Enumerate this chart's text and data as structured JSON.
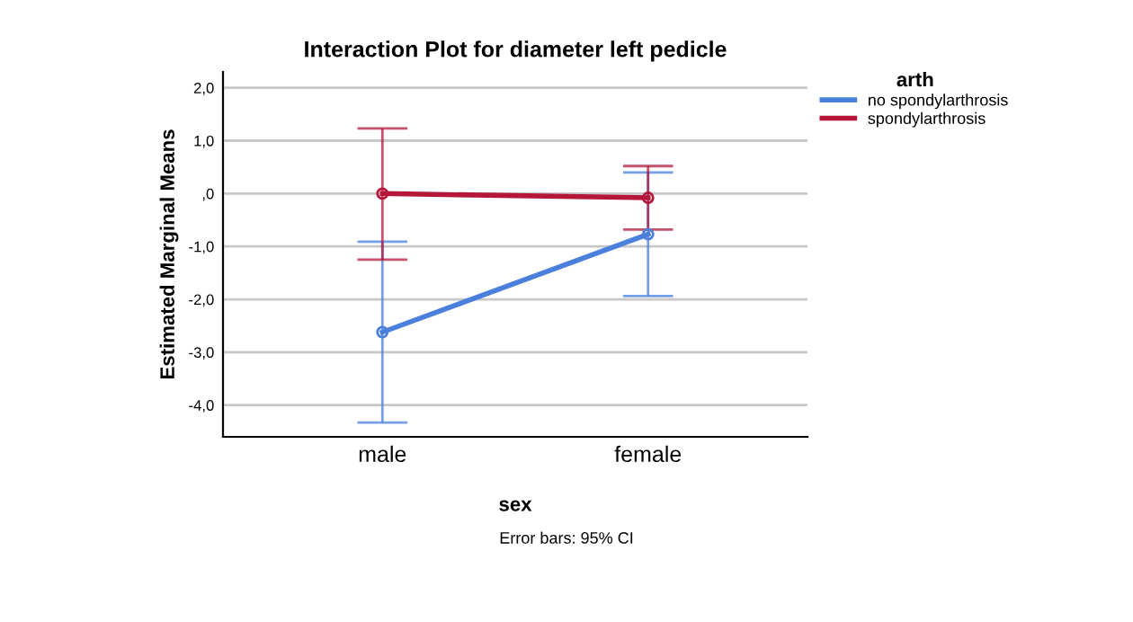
{
  "chart_data": {
    "type": "line",
    "title": "Interaction Plot for diameter left pedicle",
    "xlabel": "sex",
    "ylabel": "Estimated Marginal Means",
    "legend_title": "arth",
    "categories": [
      "male",
      "female"
    ],
    "series": [
      {
        "name": "no spondylarthrosis",
        "color": "#4a7fdc",
        "values": [
          -2.62,
          -0.77
        ],
        "errors": [
          [
            -4.33,
            -0.91
          ],
          [
            -1.94,
            0.4
          ]
        ]
      },
      {
        "name": "spondylarthrosis",
        "color": "#b5173a",
        "values": [
          0.0,
          -0.08
        ],
        "errors": [
          [
            -1.25,
            1.23
          ],
          [
            -0.68,
            0.52
          ]
        ]
      }
    ],
    "ylim": [
      -4.6,
      2.3
    ],
    "yticks": [
      {
        "value": -4,
        "label": "-4,0"
      },
      {
        "value": -3,
        "label": "-3,0"
      },
      {
        "value": -2,
        "label": "-2,0"
      },
      {
        "value": -1,
        "label": "-1,0"
      },
      {
        "value": 0,
        "label": ",0"
      },
      {
        "value": 1,
        "label": "1,0"
      },
      {
        "value": 2,
        "label": "2,0"
      }
    ],
    "grid": "y",
    "legend": "top right",
    "marker": "circle",
    "annotations": [
      "Error bars: 95% CI"
    ]
  }
}
